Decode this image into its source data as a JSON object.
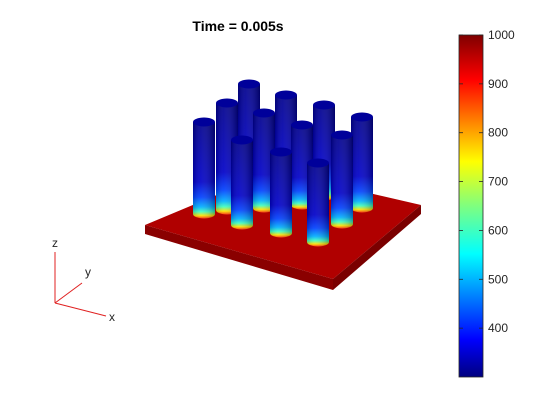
{
  "figure": {
    "title": "Time = 0.005s"
  },
  "triad": {
    "x_label": "x",
    "y_label": "y",
    "z_label": "z",
    "color": "#e02020"
  },
  "colorbar": {
    "min": 300,
    "max": 1000,
    "colormap": "jet",
    "ticks": [
      "400",
      "500",
      "600",
      "700",
      "800",
      "900",
      "1000"
    ]
  },
  "scene": {
    "plate_color": "#a00000",
    "pillar_count": 12,
    "pillar_top_color": "#00008f",
    "pillar_base_color": "#ffdd00"
  }
}
